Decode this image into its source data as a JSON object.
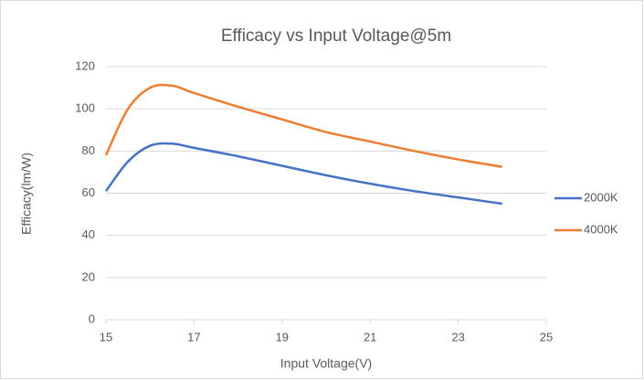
{
  "chart_data": {
    "type": "line",
    "title": "Efficacy vs Input Voltage@5m",
    "x_label": "Input Voltage(V)",
    "y_label": "Efficacy(lm/W)",
    "x": [
      15,
      15.5,
      16,
      16.5,
      17,
      18,
      19,
      20,
      21,
      22,
      23,
      24
    ],
    "series": [
      {
        "name": "2000K",
        "color": "#4472c4",
        "values": [
          61,
          75,
          82.5,
          83.5,
          81.5,
          77.5,
          73,
          68.5,
          64.5,
          61,
          58,
          55
        ]
      },
      {
        "name": "4000K",
        "color": "#ed7d31",
        "values": [
          78,
          100,
          110,
          111,
          107.5,
          101,
          95,
          89,
          84.5,
          80,
          76,
          72.5
        ]
      }
    ],
    "xlim": [
      15,
      25
    ],
    "xticks": [
      15,
      17,
      19,
      21,
      23,
      25
    ],
    "ylim": [
      0,
      120
    ],
    "yticks": [
      0,
      20,
      40,
      60,
      80,
      100,
      120
    ],
    "grid": true,
    "legend": "right"
  }
}
